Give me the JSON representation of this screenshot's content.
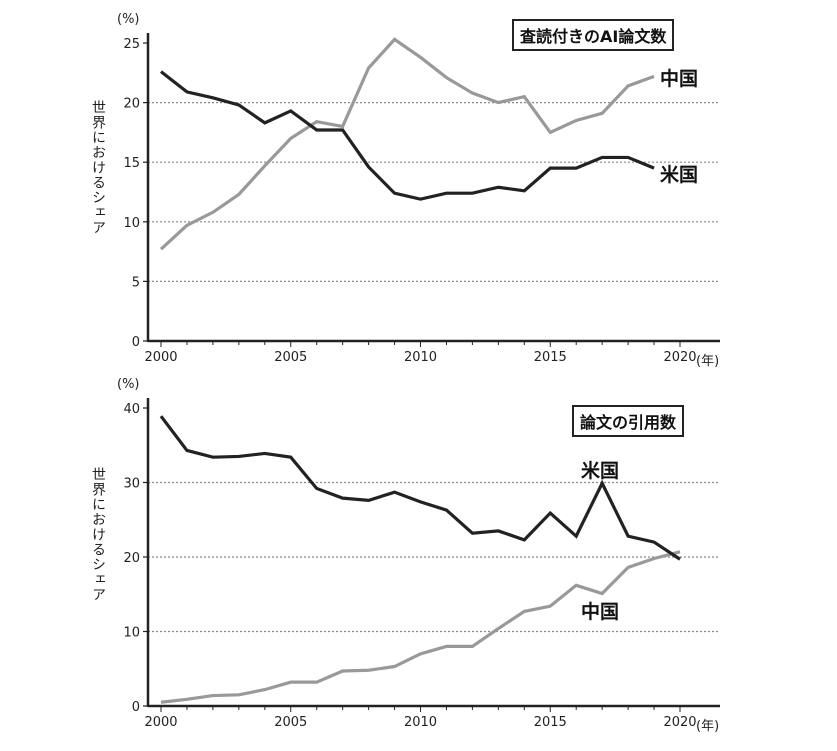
{
  "chart_data": [
    {
      "type": "line",
      "title": "査読付きのAI論文数",
      "ylabel": "世界におけるシェア",
      "yunit": "(%)",
      "xunit": "(年)",
      "ylim": [
        0,
        25
      ],
      "xlim": [
        2000,
        2020
      ],
      "yticks": [
        "0",
        "5",
        "10",
        "15",
        "20",
        "25"
      ],
      "xticks": [
        "2000",
        "2005",
        "2010",
        "2015",
        "2020"
      ],
      "grid": "horizontal dotted",
      "x": [
        2000,
        2001,
        2002,
        2003,
        2004,
        2005,
        2006,
        2007,
        2008,
        2009,
        2010,
        2011,
        2012,
        2013,
        2014,
        2015,
        2016,
        2017,
        2018,
        2019
      ],
      "series": [
        {
          "name": "米国",
          "color": "#222222",
          "values": [
            22.6,
            20.9,
            20.4,
            19.8,
            18.3,
            19.3,
            17.7,
            17.7,
            14.6,
            12.4,
            11.9,
            12.4,
            12.4,
            12.9,
            12.6,
            14.5,
            14.5,
            15.4,
            15.4,
            14.5
          ]
        },
        {
          "name": "中国",
          "color": "#999999",
          "values": [
            7.7,
            9.7,
            10.8,
            12.3,
            14.7,
            17.0,
            18.4,
            18.0,
            22.9,
            25.3,
            23.8,
            22.1,
            20.8,
            20.0,
            20.5,
            17.5,
            18.5,
            19.1,
            21.4,
            22.2
          ]
        }
      ]
    },
    {
      "type": "line",
      "title": "論文の引用数",
      "ylabel": "世界におけるシェア",
      "yunit": "(%)",
      "xunit": "(年)",
      "ylim": [
        0,
        40
      ],
      "xlim": [
        2000,
        2020
      ],
      "yticks": [
        "0",
        "10",
        "20",
        "30",
        "40"
      ],
      "xticks": [
        "2000",
        "2005",
        "2010",
        "2015",
        "2020"
      ],
      "grid": "horizontal dotted",
      "x": [
        2000,
        2001,
        2002,
        2003,
        2004,
        2005,
        2006,
        2007,
        2008,
        2009,
        2010,
        2011,
        2012,
        2013,
        2014,
        2015,
        2016,
        2017,
        2018,
        2019,
        2020
      ],
      "series": [
        {
          "name": "米国",
          "color": "#222222",
          "values": [
            38.9,
            34.3,
            33.4,
            33.5,
            33.9,
            33.4,
            29.2,
            27.9,
            27.6,
            28.7,
            27.4,
            26.3,
            23.2,
            23.5,
            22.3,
            25.9,
            22.8,
            29.9,
            22.8,
            22.0,
            19.7
          ]
        },
        {
          "name": "中国",
          "color": "#999999",
          "values": [
            0.5,
            0.9,
            1.4,
            1.5,
            2.2,
            3.2,
            3.2,
            4.7,
            4.8,
            5.3,
            7.0,
            8.0,
            8.0,
            10.4,
            12.7,
            13.4,
            16.2,
            15.1,
            18.6,
            19.8,
            20.7
          ]
        }
      ]
    }
  ]
}
